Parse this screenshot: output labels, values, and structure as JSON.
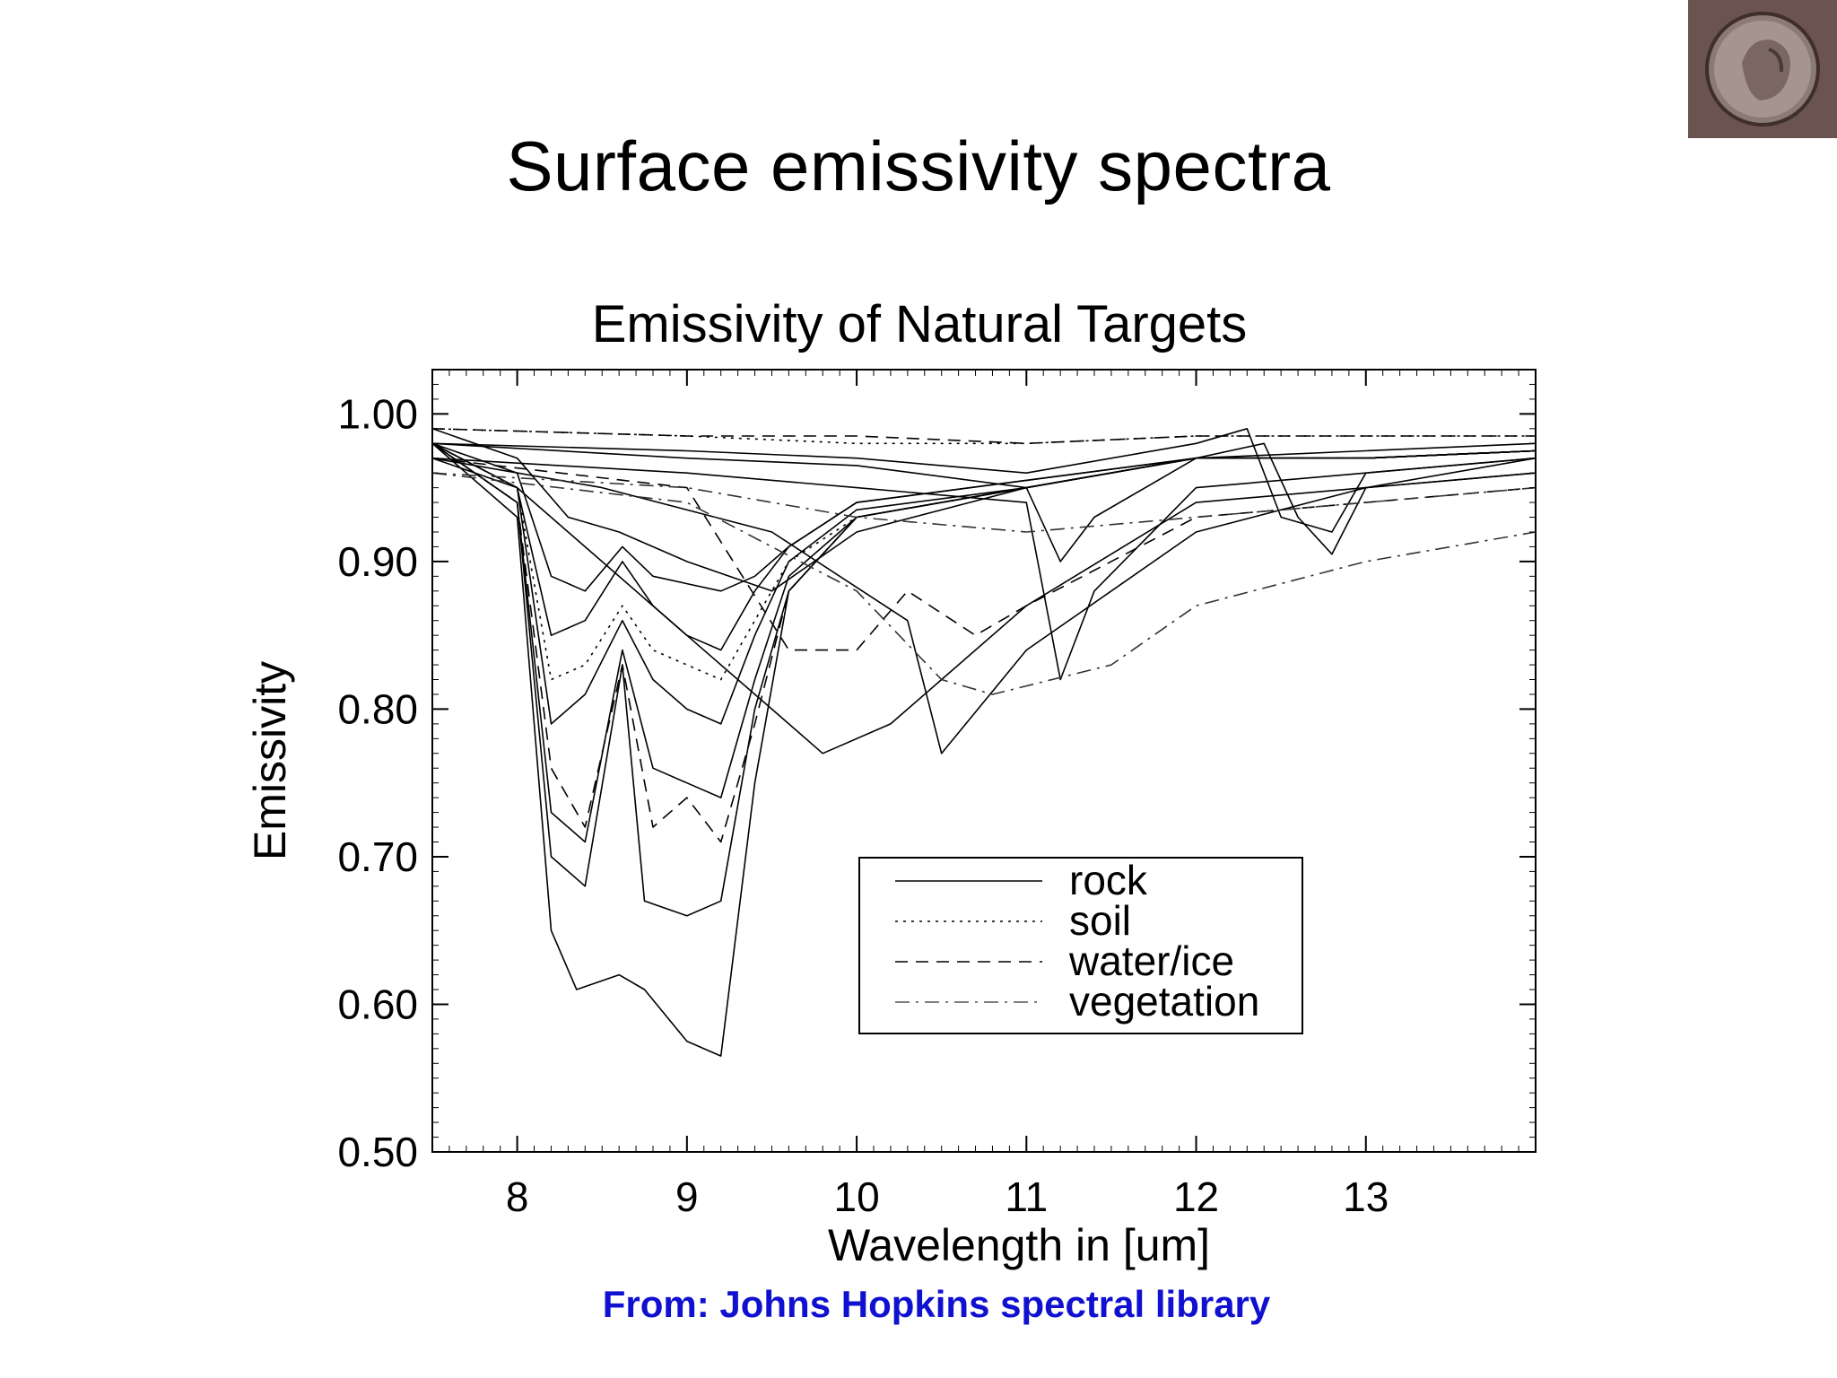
{
  "slide": {
    "title": "Surface emissivity spectra",
    "logo_icon": "greek-coin-icon",
    "credit": "From: Johns Hopkins spectral library",
    "credit_color": "#1010d0"
  },
  "chart_data": {
    "type": "line",
    "title": "Emissivity of Natural Targets",
    "xlabel": "Wavelength in [um]",
    "ylabel": "Emissivity",
    "xlim": [
      7.5,
      14.0
    ],
    "ylim": [
      0.5,
      1.03
    ],
    "xticks": [
      8,
      9,
      10,
      11,
      12,
      13
    ],
    "xtick_labels": [
      "8",
      "9",
      "10",
      "11",
      "12",
      "13"
    ],
    "yticks": [
      0.5,
      0.6,
      0.7,
      0.8,
      0.9,
      1.0
    ],
    "ytick_labels": [
      "0.50",
      "0.60",
      "0.70",
      "0.80",
      "0.90",
      "1.00"
    ],
    "grid": false,
    "legend_position": "center-right",
    "legend": [
      {
        "label": "rock",
        "style": "solid"
      },
      {
        "label": "soil",
        "style": "dotted"
      },
      {
        "label": "water/ice",
        "style": "dashed"
      },
      {
        "label": "vegetation",
        "style": "dashdot"
      }
    ],
    "series": [
      {
        "category": "rock",
        "style": "solid",
        "x": [
          7.5,
          8.0,
          8.2,
          8.35,
          8.6,
          8.75,
          9.0,
          9.2,
          9.4,
          9.6,
          10.0,
          11.0,
          12.0,
          13.0,
          14.0
        ],
        "y": [
          0.98,
          0.93,
          0.65,
          0.61,
          0.62,
          0.61,
          0.575,
          0.565,
          0.75,
          0.88,
          0.93,
          0.95,
          0.97,
          0.97,
          0.975
        ]
      },
      {
        "category": "rock",
        "style": "solid",
        "x": [
          7.5,
          8.0,
          8.2,
          8.4,
          8.62,
          8.75,
          9.0,
          9.2,
          9.4,
          9.6,
          10.0,
          11.0,
          12.0,
          13.0,
          14.0
        ],
        "y": [
          0.98,
          0.94,
          0.7,
          0.68,
          0.83,
          0.67,
          0.66,
          0.67,
          0.8,
          0.88,
          0.93,
          0.95,
          0.97,
          0.97,
          0.975
        ]
      },
      {
        "category": "rock",
        "style": "solid",
        "x": [
          7.5,
          8.0,
          8.2,
          8.4,
          8.62,
          8.8,
          9.0,
          9.2,
          9.4,
          9.6,
          10.0,
          11.0,
          12.0,
          13.0,
          14.0
        ],
        "y": [
          0.98,
          0.94,
          0.73,
          0.71,
          0.84,
          0.76,
          0.75,
          0.74,
          0.82,
          0.89,
          0.93,
          0.95,
          0.97,
          0.97,
          0.975
        ]
      },
      {
        "category": "rock",
        "style": "solid",
        "x": [
          7.5,
          8.0,
          8.2,
          8.4,
          8.62,
          8.8,
          9.0,
          9.2,
          9.4,
          9.6,
          10.0,
          11.0,
          12.0,
          13.0,
          14.0
        ],
        "y": [
          0.98,
          0.95,
          0.79,
          0.81,
          0.86,
          0.82,
          0.8,
          0.79,
          0.85,
          0.9,
          0.935,
          0.95,
          0.97,
          0.97,
          0.975
        ]
      },
      {
        "category": "rock",
        "style": "solid",
        "x": [
          7.5,
          8.0,
          8.2,
          8.4,
          8.62,
          8.8,
          9.0,
          9.2,
          9.4,
          9.6,
          10.0,
          11.0,
          12.0,
          13.0,
          14.0
        ],
        "y": [
          0.98,
          0.95,
          0.85,
          0.86,
          0.9,
          0.87,
          0.85,
          0.84,
          0.88,
          0.91,
          0.94,
          0.955,
          0.97,
          0.97,
          0.975
        ]
      },
      {
        "category": "rock",
        "style": "solid",
        "x": [
          7.5,
          8.0,
          8.2,
          8.4,
          8.62,
          8.8,
          9.0,
          9.2,
          9.4,
          9.6,
          10.0,
          11.0,
          12.0,
          13.0,
          14.0
        ],
        "y": [
          0.98,
          0.96,
          0.89,
          0.88,
          0.91,
          0.89,
          0.885,
          0.88,
          0.89,
          0.91,
          0.94,
          0.955,
          0.97,
          0.97,
          0.975
        ]
      },
      {
        "category": "rock",
        "style": "solid",
        "x": [
          7.5,
          8.0,
          8.5,
          9.0,
          9.5,
          9.8,
          10.2,
          10.5,
          11.0,
          12.0,
          13.0,
          14.0
        ],
        "y": [
          0.97,
          0.95,
          0.9,
          0.85,
          0.8,
          0.77,
          0.79,
          0.82,
          0.87,
          0.94,
          0.95,
          0.96
        ]
      },
      {
        "category": "rock",
        "style": "solid",
        "x": [
          7.5,
          8.5,
          9.5,
          10.3,
          10.5,
          11.0,
          12.0,
          13.0,
          14.0
        ],
        "y": [
          0.97,
          0.95,
          0.92,
          0.86,
          0.77,
          0.84,
          0.92,
          0.95,
          0.96
        ]
      },
      {
        "category": "rock",
        "style": "solid",
        "x": [
          7.5,
          9.0,
          10.0,
          11.0,
          11.2,
          11.4,
          12.0,
          13.0,
          14.0
        ],
        "y": [
          0.97,
          0.96,
          0.95,
          0.94,
          0.82,
          0.88,
          0.95,
          0.96,
          0.97
        ]
      },
      {
        "category": "rock",
        "style": "solid",
        "x": [
          7.5,
          9.0,
          10.0,
          11.0,
          11.2,
          11.4,
          12.0,
          12.4,
          12.6,
          12.8,
          13.0,
          14.0
        ],
        "y": [
          0.98,
          0.97,
          0.965,
          0.95,
          0.9,
          0.93,
          0.97,
          0.98,
          0.93,
          0.905,
          0.95,
          0.97
        ]
      },
      {
        "category": "rock",
        "style": "solid",
        "x": [
          7.5,
          9.0,
          10.0,
          11.0,
          12.0,
          12.3,
          12.5,
          12.8,
          13.0,
          14.0
        ],
        "y": [
          0.98,
          0.975,
          0.97,
          0.96,
          0.98,
          0.99,
          0.93,
          0.92,
          0.96,
          0.97
        ]
      },
      {
        "category": "rock",
        "style": "solid",
        "x": [
          7.5,
          8.0,
          8.3,
          8.6,
          9.0,
          9.5,
          10.0,
          11.0,
          12.0,
          13.0,
          14.0
        ],
        "y": [
          0.99,
          0.97,
          0.93,
          0.92,
          0.9,
          0.88,
          0.92,
          0.95,
          0.97,
          0.975,
          0.98
        ]
      },
      {
        "category": "soil",
        "style": "dotted",
        "x": [
          7.5,
          8.0,
          8.2,
          8.4,
          8.62,
          8.8,
          9.0,
          9.2,
          9.4,
          9.6,
          10.0,
          11.0,
          12.0,
          13.0,
          14.0
        ],
        "y": [
          0.98,
          0.95,
          0.82,
          0.83,
          0.87,
          0.84,
          0.83,
          0.82,
          0.86,
          0.9,
          0.93,
          0.95,
          0.97,
          0.97,
          0.975
        ]
      },
      {
        "category": "soil",
        "style": "dotted",
        "x": [
          7.5,
          9.0,
          10.0,
          11.0,
          12.0,
          13.0,
          14.0
        ],
        "y": [
          0.99,
          0.985,
          0.98,
          0.98,
          0.985,
          0.985,
          0.985
        ]
      },
      {
        "category": "water/ice",
        "style": "dashed",
        "x": [
          7.5,
          8.0,
          8.2,
          8.4,
          8.62,
          8.8,
          9.0,
          9.2,
          9.4,
          9.6,
          10.0,
          11.0,
          12.0,
          13.0,
          14.0
        ],
        "y": [
          0.98,
          0.94,
          0.76,
          0.72,
          0.83,
          0.72,
          0.74,
          0.71,
          0.79,
          0.88,
          0.93,
          0.95,
          0.97,
          0.97,
          0.975
        ]
      },
      {
        "category": "water/ice",
        "style": "dashed",
        "x": [
          7.5,
          9.0,
          9.6,
          10.0,
          10.3,
          10.7,
          11.0,
          12.0,
          13.0,
          14.0
        ],
        "y": [
          0.97,
          0.95,
          0.84,
          0.84,
          0.88,
          0.85,
          0.87,
          0.93,
          0.94,
          0.95
        ]
      },
      {
        "category": "water/ice",
        "style": "dashed",
        "x": [
          7.5,
          9.0,
          10.0,
          11.0,
          12.0,
          13.0,
          14.0
        ],
        "y": [
          0.99,
          0.985,
          0.985,
          0.98,
          0.985,
          0.985,
          0.985
        ]
      },
      {
        "category": "vegetation",
        "style": "dashdot",
        "x": [
          7.5,
          9.0,
          10.0,
          10.5,
          10.8,
          11.5,
          12.0,
          13.0,
          14.0
        ],
        "y": [
          0.96,
          0.94,
          0.88,
          0.82,
          0.81,
          0.83,
          0.87,
          0.9,
          0.92
        ]
      },
      {
        "category": "vegetation",
        "style": "dashdot",
        "x": [
          7.5,
          9.0,
          10.0,
          11.0,
          12.0,
          13.0,
          14.0
        ],
        "y": [
          0.96,
          0.95,
          0.93,
          0.92,
          0.93,
          0.94,
          0.95
        ]
      }
    ]
  }
}
